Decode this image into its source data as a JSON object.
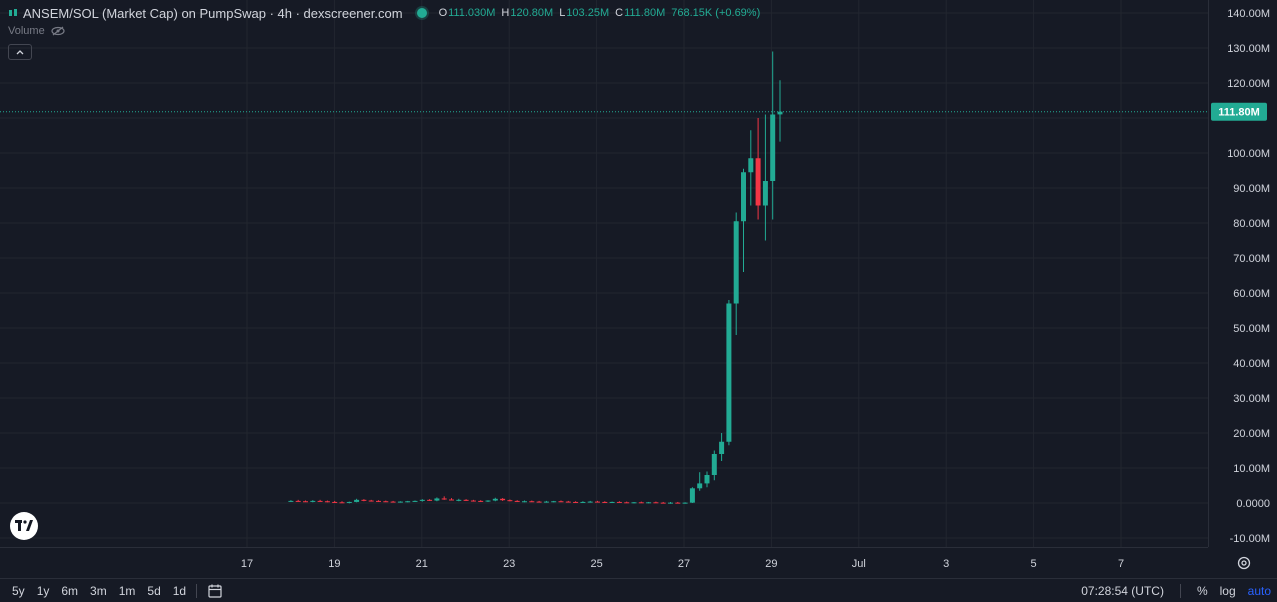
{
  "header": {
    "title": "ANSEM/SOL (Market Cap) on PumpSwap · 4h · dexscreener.com",
    "ohlc": [
      {
        "k": "O",
        "v": "111.030M"
      },
      {
        "k": "H",
        "v": "120.80M"
      },
      {
        "k": "L",
        "v": "103.25M"
      },
      {
        "k": "C",
        "v": "111.80M"
      },
      {
        "k": "",
        "v": "768.15K (+0.69%)"
      }
    ],
    "volume_label": "Volume",
    "collapse_icon": "chevron-up-icon"
  },
  "colors": {
    "background": "#161a25",
    "up": "#22ab94",
    "down": "#f23645",
    "grid": "#22262f",
    "text": "#d1d4dc",
    "price_tag": "#22ab94"
  },
  "price_axis": {
    "labels": [
      "140.00M",
      "130.00M",
      "120.00M",
      "100.00M",
      "90.00M",
      "80.00M",
      "70.00M",
      "60.00M",
      "50.00M",
      "40.00M",
      "30.00M",
      "20.00M",
      "10.00M",
      "0.0000",
      "-10.00M"
    ],
    "current_tag": "111.80M"
  },
  "time_axis": {
    "labels": [
      "17",
      "19",
      "21",
      "23",
      "25",
      "27",
      "29",
      "Jul",
      "3",
      "5",
      "7"
    ]
  },
  "chart_data": {
    "type": "candlestick",
    "ylim": [
      -10000000,
      140000000
    ],
    "ticks_y": [
      -10000000,
      0,
      10000000,
      20000000,
      30000000,
      40000000,
      50000000,
      60000000,
      70000000,
      80000000,
      90000000,
      100000000,
      110000000,
      120000000,
      130000000,
      140000000
    ],
    "current_price": 111800000,
    "candles": [
      {
        "o": 0.5,
        "h": 0.8,
        "l": 0.3,
        "c": 0.6
      },
      {
        "o": 0.6,
        "h": 0.9,
        "l": 0.4,
        "c": 0.5
      },
      {
        "o": 0.5,
        "h": 0.7,
        "l": 0.3,
        "c": 0.4
      },
      {
        "o": 0.4,
        "h": 0.8,
        "l": 0.2,
        "c": 0.6
      },
      {
        "o": 0.6,
        "h": 0.9,
        "l": 0.4,
        "c": 0.5
      },
      {
        "o": 0.5,
        "h": 0.7,
        "l": 0.2,
        "c": 0.3
      },
      {
        "o": 0.3,
        "h": 0.6,
        "l": 0.1,
        "c": 0.2
      },
      {
        "o": 0.2,
        "h": 0.5,
        "l": 0.0,
        "c": 0.1
      },
      {
        "o": 0.1,
        "h": 0.4,
        "l": -0.1,
        "c": 0.3
      },
      {
        "o": 0.3,
        "h": 1.2,
        "l": 0.2,
        "c": 0.9
      },
      {
        "o": 0.9,
        "h": 1.1,
        "l": 0.5,
        "c": 0.7
      },
      {
        "o": 0.7,
        "h": 0.9,
        "l": 0.4,
        "c": 0.6
      },
      {
        "o": 0.6,
        "h": 0.8,
        "l": 0.3,
        "c": 0.5
      },
      {
        "o": 0.5,
        "h": 0.7,
        "l": 0.3,
        "c": 0.4
      },
      {
        "o": 0.4,
        "h": 0.6,
        "l": 0.2,
        "c": 0.3
      },
      {
        "o": 0.3,
        "h": 0.5,
        "l": 0.1,
        "c": 0.4
      },
      {
        "o": 0.4,
        "h": 0.6,
        "l": 0.2,
        "c": 0.5
      },
      {
        "o": 0.5,
        "h": 0.7,
        "l": 0.3,
        "c": 0.6
      },
      {
        "o": 0.6,
        "h": 1.1,
        "l": 0.4,
        "c": 0.9
      },
      {
        "o": 0.9,
        "h": 1.1,
        "l": 0.6,
        "c": 0.7
      },
      {
        "o": 0.7,
        "h": 1.6,
        "l": 0.5,
        "c": 1.3
      },
      {
        "o": 1.3,
        "h": 1.9,
        "l": 0.9,
        "c": 1.0
      },
      {
        "o": 1.0,
        "h": 1.4,
        "l": 0.7,
        "c": 0.8
      },
      {
        "o": 0.8,
        "h": 1.2,
        "l": 0.5,
        "c": 0.9
      },
      {
        "o": 0.9,
        "h": 1.1,
        "l": 0.6,
        "c": 0.7
      },
      {
        "o": 0.7,
        "h": 0.9,
        "l": 0.4,
        "c": 0.6
      },
      {
        "o": 0.6,
        "h": 0.8,
        "l": 0.3,
        "c": 0.5
      },
      {
        "o": 0.5,
        "h": 0.8,
        "l": 0.3,
        "c": 0.7
      },
      {
        "o": 0.7,
        "h": 1.5,
        "l": 0.5,
        "c": 1.2
      },
      {
        "o": 1.2,
        "h": 1.4,
        "l": 0.6,
        "c": 0.8
      },
      {
        "o": 0.8,
        "h": 1.0,
        "l": 0.5,
        "c": 0.6
      },
      {
        "o": 0.6,
        "h": 0.8,
        "l": 0.3,
        "c": 0.4
      },
      {
        "o": 0.4,
        "h": 0.7,
        "l": 0.2,
        "c": 0.5
      },
      {
        "o": 0.5,
        "h": 0.7,
        "l": 0.3,
        "c": 0.4
      },
      {
        "o": 0.4,
        "h": 0.6,
        "l": 0.2,
        "c": 0.3
      },
      {
        "o": 0.3,
        "h": 0.6,
        "l": 0.1,
        "c": 0.4
      },
      {
        "o": 0.4,
        "h": 0.6,
        "l": 0.2,
        "c": 0.5
      },
      {
        "o": 0.5,
        "h": 0.7,
        "l": 0.3,
        "c": 0.4
      },
      {
        "o": 0.4,
        "h": 0.6,
        "l": 0.2,
        "c": 0.3
      },
      {
        "o": 0.3,
        "h": 0.5,
        "l": 0.1,
        "c": 0.2
      },
      {
        "o": 0.2,
        "h": 0.5,
        "l": 0.0,
        "c": 0.3
      },
      {
        "o": 0.3,
        "h": 0.6,
        "l": 0.1,
        "c": 0.4
      },
      {
        "o": 0.4,
        "h": 0.6,
        "l": 0.2,
        "c": 0.3
      },
      {
        "o": 0.3,
        "h": 0.5,
        "l": 0.1,
        "c": 0.2
      },
      {
        "o": 0.2,
        "h": 0.4,
        "l": 0.0,
        "c": 0.3
      },
      {
        "o": 0.3,
        "h": 0.5,
        "l": 0.1,
        "c": 0.2
      },
      {
        "o": 0.2,
        "h": 0.4,
        "l": 0.0,
        "c": 0.1
      },
      {
        "o": 0.1,
        "h": 0.3,
        "l": -0.1,
        "c": 0.2
      },
      {
        "o": 0.2,
        "h": 0.4,
        "l": 0.0,
        "c": 0.1
      },
      {
        "o": 0.1,
        "h": 0.3,
        "l": -0.1,
        "c": 0.2
      },
      {
        "o": 0.2,
        "h": 0.4,
        "l": 0.0,
        "c": 0.1
      },
      {
        "o": 0.1,
        "h": 0.3,
        "l": -0.1,
        "c": 0.0
      },
      {
        "o": 0.0,
        "h": 0.3,
        "l": -0.2,
        "c": 0.1
      },
      {
        "o": 0.1,
        "h": 0.3,
        "l": -0.1,
        "c": 0.0
      },
      {
        "o": 0.0,
        "h": 0.2,
        "l": -0.2,
        "c": 0.1
      },
      {
        "o": 0.1,
        "h": 4.5,
        "l": 0.0,
        "c": 4.2
      },
      {
        "o": 4.2,
        "h": 8.8,
        "l": 3.5,
        "c": 5.6
      },
      {
        "o": 5.6,
        "h": 9.0,
        "l": 4.5,
        "c": 8.0
      },
      {
        "o": 8.0,
        "h": 15.0,
        "l": 6.5,
        "c": 14.0
      },
      {
        "o": 14.0,
        "h": 20.0,
        "l": 12.0,
        "c": 17.5
      },
      {
        "o": 17.5,
        "h": 58.0,
        "l": 16.5,
        "c": 57.0
      },
      {
        "o": 57.0,
        "h": 83.0,
        "l": 48.0,
        "c": 80.5
      },
      {
        "o": 80.5,
        "h": 95.5,
        "l": 66.0,
        "c": 94.5
      },
      {
        "o": 94.5,
        "h": 106.5,
        "l": 85.0,
        "c": 98.5
      },
      {
        "o": 98.5,
        "h": 110.0,
        "l": 81.0,
        "c": 85.0
      },
      {
        "o": 85.0,
        "h": 111.0,
        "l": 75.0,
        "c": 92.0
      },
      {
        "o": 92.0,
        "h": 129.0,
        "l": 81.0,
        "c": 111.0
      },
      {
        "o": 111.03,
        "h": 120.8,
        "l": 103.25,
        "c": 111.8
      }
    ]
  },
  "bottom_bar": {
    "ranges": [
      "5y",
      "1y",
      "6m",
      "3m",
      "1m",
      "5d",
      "1d"
    ],
    "calendar_icon": "calendar-icon",
    "clock": "07:28:54 (UTC)",
    "percent": "%",
    "log": "log",
    "auto": "auto"
  }
}
